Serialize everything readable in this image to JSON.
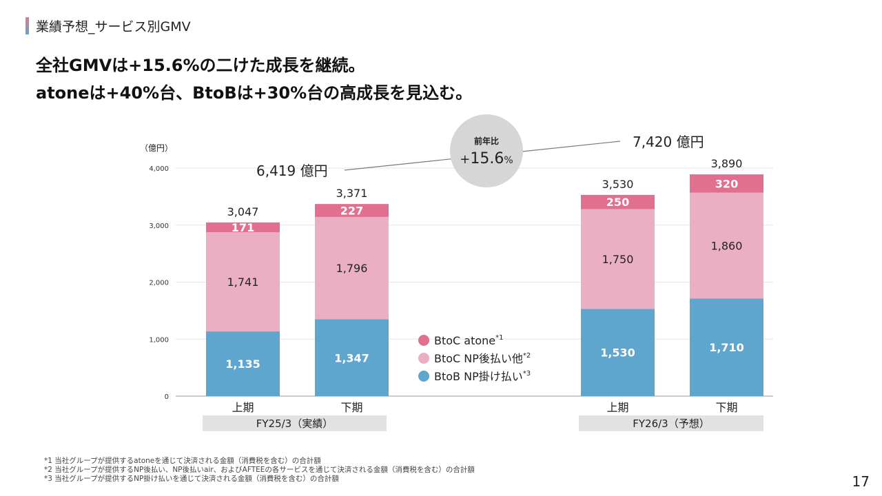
{
  "section_title": "業績予想_サービス別GMV",
  "headline_line1": "全社GMVは+15.6%の二けた成長を継続。",
  "headline_line2": "atoneは+40%台、BtoBは+30%台の高成長を見込む。",
  "page_number": "17",
  "footnotes": [
    "*1 当社グループが提供するatoneを通じて決済される金額（消費税を含む）の合計額",
    "*2 当社グループが提供するNP後払い、NP後払いair、およびAFTEEの各サービスを通じて決済される金額（消費税を含む）の合計額",
    "*3 当社グループが提供するNP掛け払いを通じて決済される金額（消費税を含む）の合計額"
  ],
  "colors": {
    "atone": "#e06f90",
    "np": "#ebafc3",
    "btob": "#5fa6cf",
    "group_box": "#e2e2e2",
    "yoy_circle": "#d6d6d6"
  },
  "chart_data": {
    "type": "bar",
    "stacked": true,
    "ylabel": "（億円）",
    "ylim": [
      0,
      4000
    ],
    "yticks": [
      "0",
      "1,000",
      "2,000",
      "3,000",
      "4,000"
    ],
    "ytick_values": [
      0,
      1000,
      2000,
      3000,
      4000
    ],
    "grid": true,
    "categories": [
      "上期",
      "下期",
      "上期",
      "下期"
    ],
    "groups": [
      {
        "label": "FY25/3（実績）",
        "categories": [
          0,
          1
        ]
      },
      {
        "label": "FY26/3（予想）",
        "categories": [
          2,
          3
        ]
      }
    ],
    "series": [
      {
        "name": "BtoB NP掛け払い",
        "sup": "*3",
        "values": [
          1135,
          1347,
          1530,
          1710
        ],
        "labels": [
          "1,135",
          "1,347",
          "1,530",
          "1,710"
        ]
      },
      {
        "name": "BtoC NP後払い他",
        "sup": "*2",
        "values": [
          1741,
          1796,
          1750,
          1860
        ],
        "labels": [
          "1,741",
          "1,796",
          "1,750",
          "1,860"
        ]
      },
      {
        "name": "BtoC atone",
        "sup": "*1",
        "values": [
          171,
          227,
          250,
          320
        ],
        "labels": [
          "171",
          "227",
          "250",
          "320"
        ]
      }
    ],
    "totals": [
      3047,
      3371,
      3530,
      3890
    ],
    "total_labels": [
      "3,047",
      "3,371",
      "3,530",
      "3,890"
    ],
    "legend_position": "center",
    "annotations": {
      "fy25_total": "6,419 億円",
      "fy26_total": "7,420 億円",
      "yoy_label": "前年比",
      "yoy_sign": "+",
      "yoy_value": "15.6",
      "yoy_unit": "%"
    }
  }
}
